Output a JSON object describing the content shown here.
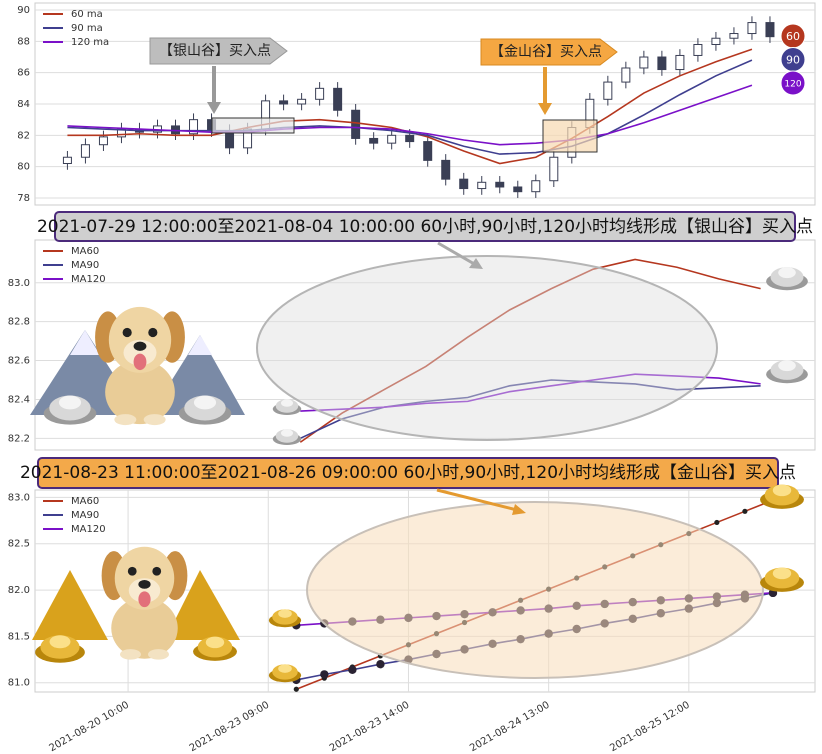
{
  "chart_data": [
    {
      "type": "candlestick",
      "x": [
        0,
        1,
        2,
        3,
        4,
        5,
        6,
        7,
        8,
        9,
        10,
        11,
        12,
        13,
        14,
        15,
        16,
        17,
        18,
        19,
        20,
        21,
        22,
        23,
        24,
        25,
        26,
        27,
        28,
        29,
        30,
        31,
        32,
        33,
        34,
        35,
        36,
        37,
        38,
        39
      ],
      "open": [
        80.2,
        80.6,
        81.4,
        81.9,
        82.4,
        82.2,
        82.6,
        82.1,
        83.0,
        82.3,
        81.2,
        82.4,
        84.2,
        84.0,
        84.3,
        85.0,
        83.6,
        81.8,
        81.5,
        82.0,
        81.6,
        80.4,
        79.2,
        78.6,
        79.0,
        78.7,
        78.4,
        79.1,
        80.6,
        82.5,
        84.3,
        85.4,
        86.3,
        87.0,
        86.2,
        87.1,
        87.8,
        88.2,
        88.5,
        89.2
      ],
      "high": [
        81.0,
        81.8,
        82.3,
        82.8,
        82.8,
        83.0,
        83.0,
        83.4,
        83.4,
        82.7,
        82.8,
        84.6,
        84.6,
        84.7,
        85.4,
        85.4,
        84.0,
        82.2,
        82.4,
        82.4,
        82.0,
        80.8,
        79.6,
        79.4,
        79.4,
        79.1,
        79.5,
        81.0,
        82.9,
        84.7,
        85.8,
        86.7,
        87.4,
        87.4,
        87.5,
        88.2,
        88.6,
        88.9,
        89.6,
        89.6
      ],
      "low": [
        79.8,
        80.2,
        81.0,
        81.5,
        81.8,
        81.8,
        81.7,
        81.7,
        81.9,
        80.8,
        80.8,
        82.0,
        83.6,
        83.6,
        83.9,
        83.2,
        81.4,
        81.1,
        81.1,
        81.2,
        80.0,
        78.8,
        78.2,
        78.2,
        78.3,
        78.0,
        78.0,
        78.7,
        80.2,
        82.1,
        83.9,
        85.0,
        85.9,
        85.8,
        85.8,
        86.7,
        87.4,
        87.8,
        88.1,
        87.9
      ],
      "close": [
        80.6,
        81.4,
        81.9,
        82.4,
        82.2,
        82.6,
        82.1,
        83.0,
        82.3,
        81.2,
        82.4,
        84.2,
        84.0,
        84.3,
        85.0,
        83.6,
        81.8,
        81.5,
        82.0,
        81.6,
        80.4,
        79.2,
        78.6,
        79.0,
        78.7,
        78.4,
        79.1,
        80.6,
        82.5,
        84.3,
        85.4,
        86.3,
        87.0,
        86.2,
        87.1,
        87.8,
        88.2,
        88.5,
        89.2,
        88.3
      ],
      "up_color": "#ffffff",
      "down_color": "#3a3f55",
      "series": [
        {
          "name": "60 ma",
          "color": "#b5371f",
          "x": [
            0,
            2,
            4,
            6,
            8,
            10,
            12,
            14,
            16,
            18,
            20,
            22,
            24,
            26,
            28,
            30,
            32,
            34,
            36,
            38
          ],
          "values": [
            82.0,
            82.0,
            82.1,
            82.0,
            82.0,
            82.5,
            82.9,
            83.0,
            82.8,
            82.5,
            81.9,
            81.0,
            80.2,
            80.6,
            81.8,
            83.2,
            84.7,
            85.8,
            86.7,
            87.5
          ]
        },
        {
          "name": "90 ma",
          "color": "#3f3f8f",
          "x": [
            0,
            2,
            4,
            6,
            8,
            10,
            12,
            14,
            16,
            18,
            20,
            22,
            24,
            26,
            28,
            30,
            32,
            34,
            36,
            38
          ],
          "values": [
            82.5,
            82.4,
            82.3,
            82.3,
            82.3,
            82.3,
            82.5,
            82.6,
            82.5,
            82.3,
            82.0,
            81.3,
            80.8,
            80.9,
            81.3,
            82.1,
            83.3,
            84.6,
            85.8,
            86.8
          ]
        },
        {
          "name": "120 ma",
          "color": "#7a10c8",
          "x": [
            0,
            2,
            4,
            6,
            8,
            10,
            12,
            14,
            16,
            18,
            20,
            22,
            24,
            26,
            28,
            30,
            32,
            34,
            36,
            38
          ],
          "values": [
            82.6,
            82.5,
            82.4,
            82.3,
            82.2,
            82.2,
            82.4,
            82.5,
            82.5,
            82.4,
            82.1,
            81.7,
            81.4,
            81.5,
            81.7,
            82.1,
            82.8,
            83.6,
            84.4,
            85.2
          ]
        }
      ],
      "xlim": [
        -1.8,
        41.5
      ],
      "ylim": [
        77.55,
        90.45
      ],
      "yticks": [
        78,
        80,
        82,
        84,
        86,
        88,
        90
      ],
      "grid": true,
      "legend": "upper left",
      "annotations": [
        "【银山谷】买入点",
        "【金山谷】买入点"
      ],
      "end_labels": [
        "60",
        "90",
        "120"
      ]
    },
    {
      "type": "line",
      "title": "2021-07-29 12:00:00至2021-08-04 10:00:00 60小时,90小时,120小时均线形成【银山谷】买入点",
      "series": [
        {
          "name": "MA60",
          "color": "#b5371f",
          "x": [
            0,
            1,
            2,
            3,
            4,
            5,
            6,
            7,
            8,
            9,
            10,
            11
          ],
          "values": [
            82.18,
            82.33,
            82.45,
            82.57,
            82.72,
            82.86,
            82.97,
            83.07,
            83.12,
            83.08,
            83.02,
            82.97
          ]
        },
        {
          "name": "MA90",
          "color": "#3f3f8f",
          "x": [
            0,
            1,
            2,
            3,
            4,
            5,
            6,
            7,
            8,
            9,
            10,
            11
          ],
          "values": [
            82.2,
            82.3,
            82.36,
            82.39,
            82.41,
            82.47,
            82.5,
            82.49,
            82.48,
            82.45,
            82.46,
            82.47
          ]
        },
        {
          "name": "MA120",
          "color": "#7a10c8",
          "x": [
            0,
            1,
            2,
            3,
            4,
            5,
            6,
            7,
            8,
            9,
            10,
            11
          ],
          "values": [
            82.34,
            82.35,
            82.36,
            82.38,
            82.39,
            82.44,
            82.47,
            82.5,
            82.53,
            82.52,
            82.51,
            82.48
          ]
        }
      ],
      "xlim": [
        -6.34,
        12.3
      ],
      "ylim": [
        82.14,
        83.22
      ],
      "yticks": [
        82.2,
        82.4,
        82.6,
        82.8,
        {
          "value": 83,
          "label": "83.0"
        }
      ],
      "grid": true,
      "legend": "upper left"
    },
    {
      "type": "line",
      "markers": true,
      "title": "2021-08-23 11:00:00至2021-08-26 09:00:00 60小时,90小时,120小时均线形成【金山谷】买入点",
      "series": [
        {
          "name": "MA60",
          "color": "#b5371f",
          "x": [
            6,
            7,
            8,
            9,
            10,
            11,
            12,
            13,
            14,
            15,
            16,
            17,
            18,
            19,
            20,
            21,
            22,
            23
          ],
          "values": [
            80.93,
            81.05,
            81.17,
            81.29,
            81.41,
            81.53,
            81.65,
            81.77,
            81.89,
            82.01,
            82.13,
            82.25,
            82.37,
            82.49,
            82.61,
            82.73,
            82.85,
            82.97
          ]
        },
        {
          "name": "MA90",
          "color": "#3f3f8f",
          "x": [
            6,
            7,
            8,
            9,
            10,
            11,
            12,
            13,
            14,
            15,
            16,
            17,
            18,
            19,
            20,
            21,
            22,
            23
          ],
          "values": [
            81.03,
            81.09,
            81.14,
            81.2,
            81.25,
            81.31,
            81.36,
            81.42,
            81.47,
            81.53,
            81.58,
            81.64,
            81.69,
            81.75,
            81.8,
            81.86,
            81.91,
            81.97
          ]
        },
        {
          "name": "MA120",
          "color": "#7a10c8",
          "x": [
            6,
            7,
            8,
            9,
            10,
            11,
            12,
            13,
            14,
            15,
            16,
            17,
            18,
            19,
            20,
            21,
            22,
            23
          ],
          "values": [
            81.62,
            81.64,
            81.66,
            81.68,
            81.7,
            81.72,
            81.74,
            81.76,
            81.78,
            81.8,
            81.83,
            81.85,
            81.87,
            81.89,
            81.91,
            81.93,
            81.95,
            81.97
          ]
        }
      ],
      "xlim": [
        -3.32,
        24.5
      ],
      "ylim": [
        80.9,
        83.08
      ],
      "yticks": [
        {
          "value": 81,
          "label": "81.0"
        },
        81.5,
        {
          "value": 82,
          "label": "82.0"
        },
        82.5,
        {
          "value": 83,
          "label": "83.0"
        }
      ],
      "xticks": [
        {
          "value": 0,
          "label": "2021-08-20 10:00"
        },
        {
          "value": 5,
          "label": "2021-08-23 09:00"
        },
        {
          "value": 10,
          "label": "2021-08-23 14:00"
        },
        {
          "value": 15,
          "label": "2021-08-24 13:00"
        },
        {
          "value": 20,
          "label": "2021-08-25 12:00"
        }
      ],
      "grid": true,
      "legend": "upper left"
    }
  ]
}
